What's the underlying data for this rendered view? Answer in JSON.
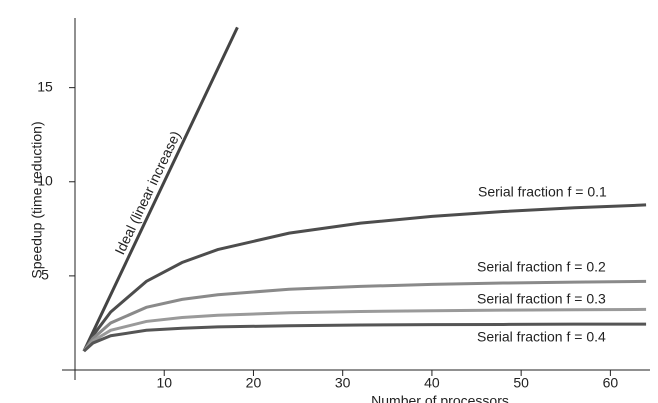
{
  "chart_data": {
    "type": "line",
    "x_label": "Number of processors",
    "y_label": "Speedup (time reduction)",
    "xlim": [
      0,
      65
    ],
    "ylim": [
      0,
      18.7
    ],
    "xticks": [
      10,
      20,
      30,
      40,
      50,
      60
    ],
    "yticks": [
      5,
      10,
      15
    ],
    "series": [
      {
        "name": "Ideal (linear increase)",
        "color": "#444444",
        "x": [
          1,
          18.2
        ],
        "values": [
          1,
          18.2
        ]
      },
      {
        "name": "Serial fraction f = 0.1",
        "color": "#4d4d4d",
        "x": [
          1,
          2,
          4,
          8,
          12,
          16,
          24,
          32,
          40,
          48,
          56,
          64
        ],
        "values": [
          1,
          1.82,
          3.08,
          4.71,
          5.71,
          6.4,
          7.27,
          7.8,
          8.16,
          8.42,
          8.62,
          8.77
        ]
      },
      {
        "name": "Serial fraction f = 0.2",
        "color": "#8a8a8a",
        "x": [
          1,
          2,
          4,
          8,
          12,
          16,
          24,
          32,
          40,
          48,
          56,
          64
        ],
        "values": [
          1,
          1.67,
          2.5,
          3.33,
          3.75,
          4,
          4.29,
          4.44,
          4.55,
          4.62,
          4.67,
          4.71
        ]
      },
      {
        "name": "Serial fraction f = 0.3",
        "color": "#9a9a9a",
        "x": [
          1,
          2,
          4,
          8,
          12,
          16,
          24,
          32,
          40,
          48,
          56,
          64
        ],
        "values": [
          1,
          1.54,
          2.11,
          2.58,
          2.79,
          2.91,
          3.04,
          3.11,
          3.15,
          3.18,
          3.2,
          3.22
        ]
      },
      {
        "name": "Serial fraction f = 0.4",
        "color": "#555555",
        "x": [
          1,
          2,
          4,
          8,
          12,
          16,
          24,
          32,
          40,
          48,
          56,
          64
        ],
        "values": [
          1,
          1.43,
          1.82,
          2.11,
          2.22,
          2.29,
          2.35,
          2.39,
          2.41,
          2.42,
          2.44,
          2.44
        ]
      }
    ]
  }
}
